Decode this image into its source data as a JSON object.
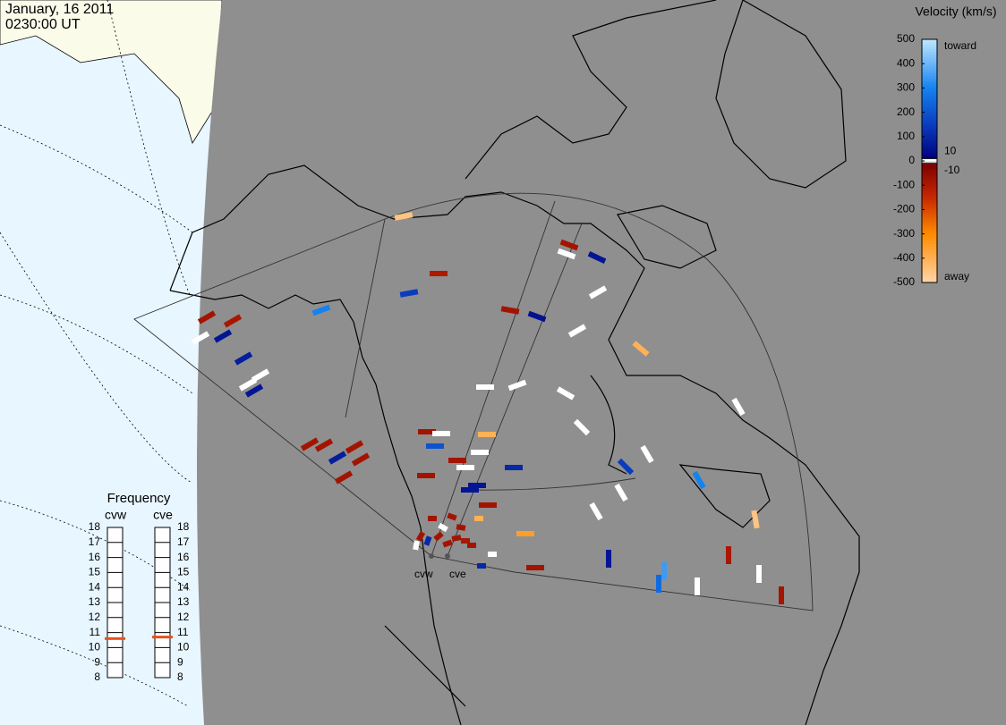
{
  "header": {
    "date": "January, 16 2011",
    "time": "0230:00 UT"
  },
  "map": {
    "sites": [
      "cvw",
      "cve"
    ],
    "vectors": [
      -450,
      -100,
      150,
      -80,
      50,
      -80,
      5,
      60,
      5,
      3,
      -400,
      300,
      -80,
      -90,
      3,
      60,
      80,
      5,
      4,
      60,
      2,
      2,
      2,
      3,
      3,
      150,
      4,
      300,
      3,
      3,
      -450,
      -90,
      3,
      350,
      250,
      3,
      -80,
      60,
      -400,
      100,
      -350,
      -80,
      -80,
      -80,
      80,
      -80,
      -80,
      -80,
      60,
      60,
      -80,
      3,
      200,
      3,
      -80,
      3,
      -80,
      2,
      100,
      -80,
      100,
      -80,
      -80,
      -80,
      -90,
      -80,
      3,
      5,
      -80,
      -80,
      -80,
      -400,
      -80
    ]
  },
  "colorbar": {
    "title": "Velocity (km/s)",
    "lim": [
      -500,
      500
    ],
    "ticks": [
      500,
      400,
      300,
      200,
      100,
      0,
      -100,
      -200,
      -300,
      -400,
      -500
    ],
    "threshold_ticks": [
      10,
      -10
    ],
    "top_label": "toward",
    "bottom_label": "away"
  },
  "frequency": {
    "title": "Frequency",
    "lim": [
      8,
      18
    ],
    "ticks": [
      8,
      9,
      10,
      11,
      12,
      13,
      14,
      15,
      16,
      17,
      18
    ],
    "radars": [
      {
        "name": "cvw",
        "value": 10.6
      },
      {
        "name": "cve",
        "value": 10.7
      }
    ],
    "marker_color": "#e8501a"
  }
}
